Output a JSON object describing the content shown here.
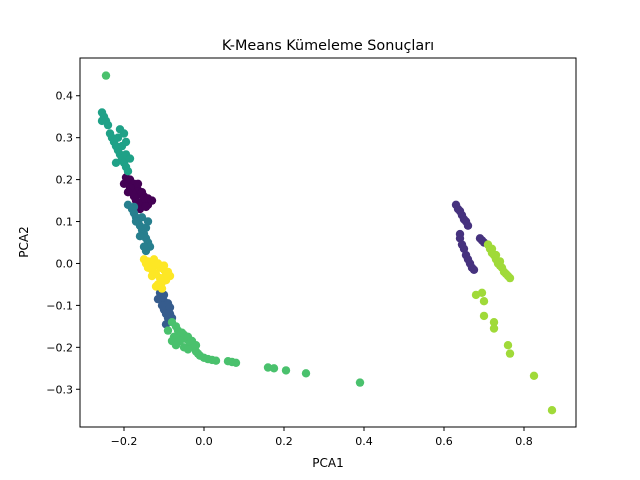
{
  "chart_data": {
    "type": "scatter",
    "title": "K-Means Kümeleme Sonuçları",
    "xlabel": "PCA1",
    "ylabel": "PCA2",
    "xlim": [
      -0.31,
      0.93
    ],
    "ylim": [
      -0.39,
      0.49
    ],
    "xticks": [
      -0.2,
      0.0,
      0.2,
      0.4,
      0.6,
      0.8
    ],
    "xtick_labels": [
      "−0.2",
      "0.0",
      "0.2",
      "0.4",
      "0.6",
      "0.8"
    ],
    "yticks": [
      -0.3,
      -0.2,
      -0.1,
      0.0,
      0.1,
      0.2,
      0.3,
      0.4
    ],
    "ytick_labels": [
      "−0.3",
      "−0.2",
      "−0.1",
      "0.0",
      "0.1",
      "0.2",
      "0.3",
      "0.4"
    ],
    "grid": false,
    "legend": false,
    "series": [
      {
        "color": "#440154",
        "points": [
          [
            -0.195,
            0.205
          ],
          [
            -0.19,
            0.195
          ],
          [
            -0.185,
            0.2
          ],
          [
            -0.18,
            0.185
          ],
          [
            -0.175,
            0.19
          ],
          [
            -0.17,
            0.18
          ],
          [
            -0.165,
            0.175
          ],
          [
            -0.16,
            0.165
          ],
          [
            -0.155,
            0.17
          ],
          [
            -0.15,
            0.16
          ],
          [
            -0.145,
            0.15
          ],
          [
            -0.14,
            0.14
          ],
          [
            -0.17,
            0.15
          ],
          [
            -0.175,
            0.16
          ],
          [
            -0.18,
            0.17
          ],
          [
            -0.155,
            0.14
          ],
          [
            -0.16,
            0.13
          ],
          [
            -0.15,
            0.155
          ],
          [
            -0.165,
            0.19
          ],
          [
            -0.185,
            0.18
          ],
          [
            -0.2,
            0.19
          ],
          [
            -0.19,
            0.17
          ],
          [
            -0.14,
            0.155
          ],
          [
            -0.145,
            0.135
          ],
          [
            -0.165,
            0.145
          ],
          [
            -0.13,
            0.15
          ]
        ]
      },
      {
        "color": "#46327e",
        "points": [
          [
            0.63,
            0.14
          ],
          [
            0.635,
            0.13
          ],
          [
            0.64,
            0.125
          ],
          [
            0.645,
            0.115
          ],
          [
            0.65,
            0.105
          ],
          [
            0.655,
            0.1
          ],
          [
            0.66,
            0.09
          ],
          [
            0.64,
            0.06
          ],
          [
            0.645,
            0.045
          ],
          [
            0.65,
            0.035
          ],
          [
            0.655,
            0.02
          ],
          [
            0.66,
            0.01
          ],
          [
            0.665,
            0.0
          ],
          [
            0.67,
            -0.01
          ],
          [
            0.675,
            -0.015
          ],
          [
            0.64,
            0.07
          ],
          [
            0.69,
            0.06
          ],
          [
            0.695,
            0.055
          ],
          [
            0.7,
            0.05
          ]
        ]
      },
      {
        "color": "#365c8d",
        "points": [
          [
            -0.11,
            -0.07
          ],
          [
            -0.105,
            -0.08
          ],
          [
            -0.1,
            -0.09
          ],
          [
            -0.095,
            -0.1
          ],
          [
            -0.09,
            -0.11
          ],
          [
            -0.085,
            -0.12
          ],
          [
            -0.08,
            -0.13
          ],
          [
            -0.1,
            -0.11
          ],
          [
            -0.095,
            -0.12
          ],
          [
            -0.105,
            -0.1
          ],
          [
            -0.09,
            -0.095
          ],
          [
            -0.115,
            -0.085
          ],
          [
            -0.085,
            -0.105
          ],
          [
            -0.1,
            -0.075
          ],
          [
            -0.09,
            -0.13
          ],
          [
            -0.095,
            -0.145
          ]
        ]
      },
      {
        "color": "#277f8e",
        "points": [
          [
            -0.19,
            0.14
          ],
          [
            -0.18,
            0.13
          ],
          [
            -0.175,
            0.12
          ],
          [
            -0.17,
            0.11
          ],
          [
            -0.165,
            0.1
          ],
          [
            -0.16,
            0.09
          ],
          [
            -0.155,
            0.08
          ],
          [
            -0.15,
            0.07
          ],
          [
            -0.145,
            0.06
          ],
          [
            -0.14,
            0.05
          ],
          [
            -0.135,
            0.04
          ],
          [
            -0.145,
            0.03
          ],
          [
            -0.15,
            0.04
          ],
          [
            -0.16,
            0.065
          ],
          [
            -0.17,
            0.1
          ],
          [
            -0.145,
            0.085
          ],
          [
            -0.155,
            0.11
          ],
          [
            -0.14,
            0.1
          ],
          [
            -0.175,
            0.135
          ]
        ]
      },
      {
        "color": "#1fa187",
        "points": [
          [
            -0.255,
            0.36
          ],
          [
            -0.25,
            0.35
          ],
          [
            -0.245,
            0.34
          ],
          [
            -0.24,
            0.33
          ],
          [
            -0.235,
            0.31
          ],
          [
            -0.23,
            0.3
          ],
          [
            -0.225,
            0.29
          ],
          [
            -0.22,
            0.28
          ],
          [
            -0.215,
            0.27
          ],
          [
            -0.21,
            0.26
          ],
          [
            -0.205,
            0.25
          ],
          [
            -0.2,
            0.24
          ],
          [
            -0.195,
            0.23
          ],
          [
            -0.19,
            0.22
          ],
          [
            -0.215,
            0.3
          ],
          [
            -0.21,
            0.32
          ],
          [
            -0.2,
            0.31
          ],
          [
            -0.195,
            0.26
          ],
          [
            -0.185,
            0.25
          ],
          [
            -0.255,
            0.34
          ],
          [
            -0.22,
            0.24
          ],
          [
            -0.205,
            0.28
          ],
          [
            -0.195,
            0.29
          ]
        ]
      },
      {
        "color": "#4ac16d",
        "points": [
          [
            -0.245,
            0.448
          ],
          [
            -0.08,
            -0.14
          ],
          [
            -0.07,
            -0.15
          ],
          [
            -0.065,
            -0.16
          ],
          [
            -0.06,
            -0.17
          ],
          [
            -0.055,
            -0.165
          ],
          [
            -0.05,
            -0.17
          ],
          [
            -0.045,
            -0.18
          ],
          [
            -0.04,
            -0.175
          ],
          [
            -0.035,
            -0.19
          ],
          [
            -0.03,
            -0.185
          ],
          [
            -0.025,
            -0.2
          ],
          [
            -0.02,
            -0.21
          ],
          [
            -0.015,
            -0.215
          ],
          [
            -0.01,
            -0.22
          ],
          [
            0.0,
            -0.225
          ],
          [
            0.01,
            -0.228
          ],
          [
            0.02,
            -0.23
          ],
          [
            0.03,
            -0.232
          ],
          [
            0.06,
            -0.233
          ],
          [
            0.07,
            -0.235
          ],
          [
            0.08,
            -0.237
          ],
          [
            0.16,
            -0.248
          ],
          [
            0.175,
            -0.25
          ],
          [
            0.205,
            -0.255
          ],
          [
            0.255,
            -0.262
          ],
          [
            0.39,
            -0.284
          ],
          [
            -0.09,
            -0.16
          ],
          [
            -0.075,
            -0.175
          ],
          [
            -0.06,
            -0.185
          ],
          [
            -0.08,
            -0.185
          ],
          [
            -0.07,
            -0.195
          ],
          [
            -0.05,
            -0.2
          ],
          [
            -0.04,
            -0.205
          ],
          [
            -0.02,
            -0.195
          ]
        ]
      },
      {
        "color": "#a0da39",
        "points": [
          [
            0.71,
            0.045
          ],
          [
            0.715,
            0.035
          ],
          [
            0.72,
            0.025
          ],
          [
            0.725,
            0.02
          ],
          [
            0.73,
            0.01
          ],
          [
            0.735,
            0.0
          ],
          [
            0.74,
            -0.005
          ],
          [
            0.745,
            -0.01
          ],
          [
            0.75,
            -0.02
          ],
          [
            0.755,
            -0.025
          ],
          [
            0.76,
            -0.03
          ],
          [
            0.765,
            -0.035
          ],
          [
            0.72,
            0.035
          ],
          [
            0.73,
            0.02
          ],
          [
            0.74,
            0.005
          ],
          [
            0.68,
            -0.075
          ],
          [
            0.695,
            -0.07
          ],
          [
            0.7,
            -0.09
          ],
          [
            0.7,
            -0.125
          ],
          [
            0.725,
            -0.14
          ],
          [
            0.725,
            -0.155
          ],
          [
            0.76,
            -0.195
          ],
          [
            0.765,
            -0.215
          ],
          [
            0.825,
            -0.268
          ],
          [
            0.87,
            -0.35
          ]
        ]
      },
      {
        "color": "#fde725",
        "points": [
          [
            -0.15,
            0.01
          ],
          [
            -0.14,
            0.005
          ],
          [
            -0.13,
            0.0
          ],
          [
            -0.12,
            -0.005
          ],
          [
            -0.11,
            -0.01
          ],
          [
            -0.1,
            -0.015
          ],
          [
            -0.09,
            -0.02
          ],
          [
            -0.085,
            -0.03
          ],
          [
            -0.095,
            -0.04
          ],
          [
            -0.105,
            -0.045
          ],
          [
            -0.115,
            -0.05
          ],
          [
            -0.12,
            -0.055
          ],
          [
            -0.11,
            -0.035
          ],
          [
            -0.12,
            -0.025
          ],
          [
            -0.13,
            -0.015
          ],
          [
            -0.125,
            0.01
          ],
          [
            -0.115,
            0.0
          ],
          [
            -0.1,
            -0.005
          ],
          [
            -0.14,
            -0.01
          ],
          [
            -0.105,
            -0.06
          ],
          [
            -0.095,
            -0.025
          ],
          [
            -0.145,
            0.0
          ],
          [
            -0.13,
            -0.03
          ]
        ]
      }
    ]
  }
}
